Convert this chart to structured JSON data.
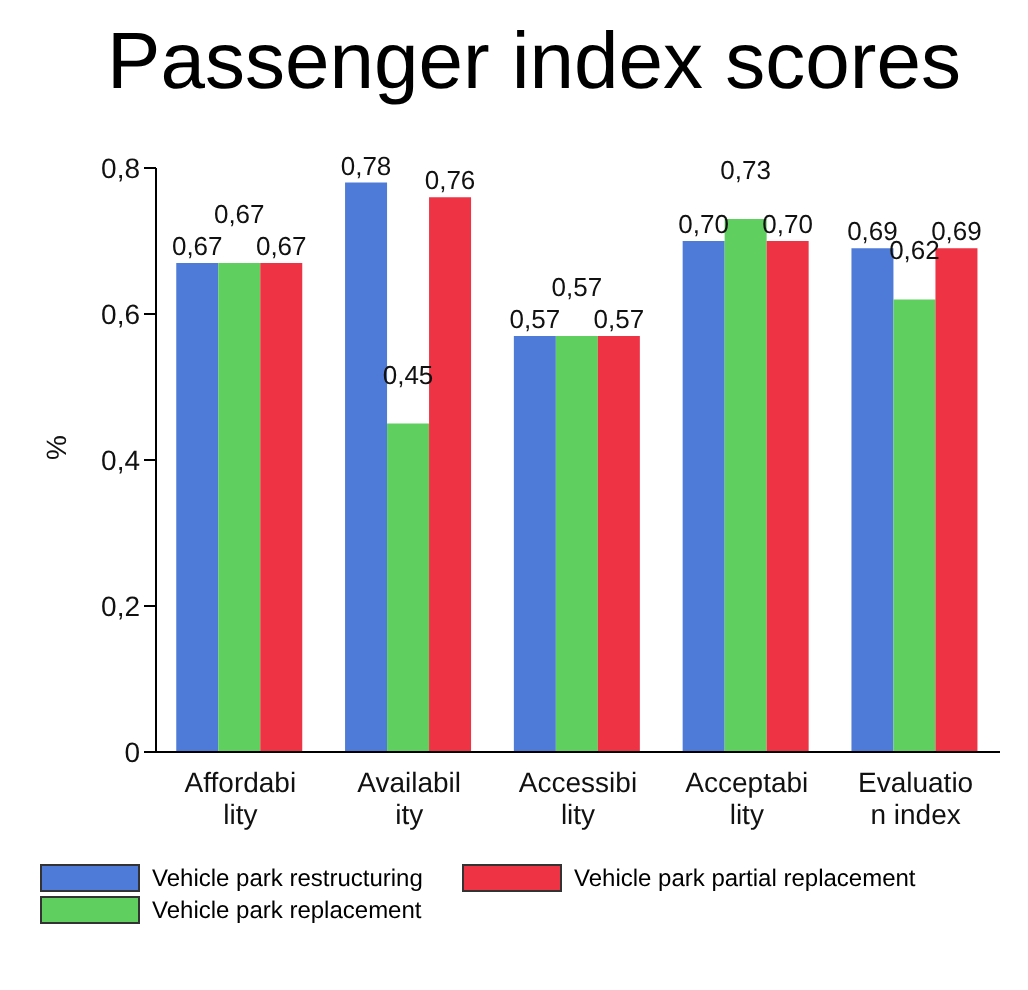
{
  "chart_data": {
    "type": "bar",
    "title": "Passenger index scores",
    "ylabel": "%",
    "categories": [
      "Affordability",
      "Availability",
      "Accessibility",
      "Acceptability",
      "Evaluation index"
    ],
    "series": [
      {
        "name": "Vehicle park restructuring",
        "color": "#4f7bd8",
        "values": [
          0.67,
          0.78,
          0.57,
          0.7,
          0.69
        ],
        "value_labels": [
          "0,67",
          "0,78",
          "0,57",
          "0,70",
          "0,69"
        ]
      },
      {
        "name": "Vehicle park replacement",
        "color": "#5fcf5f",
        "values": [
          0.67,
          0.45,
          0.57,
          0.73,
          0.62
        ],
        "value_labels": [
          "0,67",
          "0,45",
          "0,57",
          "0,73",
          "0,62"
        ]
      },
      {
        "name": "Vehicle park partial replacement",
        "color": "#ee3344",
        "values": [
          0.67,
          0.76,
          0.57,
          0.7,
          0.69
        ],
        "value_labels": [
          "0,67",
          "0,76",
          "0,57",
          "0,70",
          "0,69"
        ]
      }
    ],
    "ylim": [
      0,
      0.8
    ],
    "yticks": [
      0,
      {
        "value": 0.2,
        "label": "0,2"
      },
      {
        "value": 0.4,
        "label": "0,4"
      },
      {
        "value": 0.6,
        "label": "0,6"
      },
      {
        "value": 0.8,
        "label": "0,8"
      }
    ],
    "grid": false,
    "legend": "bottom"
  }
}
